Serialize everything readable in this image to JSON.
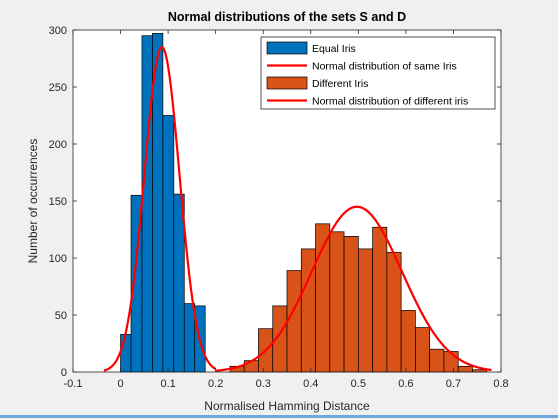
{
  "chart_data": {
    "type": "histogram",
    "title": "Normal distributions of the sets S and D",
    "xlabel": "Normalised Hamming Distance",
    "ylabel": "Number of occurrences",
    "xlim": [
      -0.1,
      0.8
    ],
    "ylim": [
      0,
      300
    ],
    "xticks": [
      -0.1,
      0,
      0.1,
      0.2,
      0.3,
      0.4,
      0.5,
      0.6,
      0.7,
      0.8
    ],
    "xtick_labels": [
      "-0.1",
      "0",
      "0.1",
      "0.2",
      "0.3",
      "0.4",
      "0.5",
      "0.6",
      "0.7",
      "0.8"
    ],
    "yticks": [
      0,
      50,
      100,
      150,
      200,
      250,
      300
    ],
    "ytick_labels": [
      "0",
      "50",
      "100",
      "150",
      "200",
      "250",
      "300"
    ],
    "grid": false,
    "legend_position": "top-right",
    "series": [
      {
        "name": "Equal Iris",
        "kind": "bars",
        "color": "#0072bd",
        "bins": [
          {
            "x0": 0.0,
            "x1": 0.022,
            "count": 33
          },
          {
            "x0": 0.022,
            "x1": 0.045,
            "count": 155
          },
          {
            "x0": 0.045,
            "x1": 0.067,
            "count": 295
          },
          {
            "x0": 0.067,
            "x1": 0.089,
            "count": 297
          },
          {
            "x0": 0.089,
            "x1": 0.112,
            "count": 225
          },
          {
            "x0": 0.112,
            "x1": 0.134,
            "count": 156
          },
          {
            "x0": 0.134,
            "x1": 0.156,
            "count": 60
          },
          {
            "x0": 0.156,
            "x1": 0.178,
            "count": 58
          }
        ]
      },
      {
        "name": "Normal distribution of same Iris",
        "kind": "curve",
        "color": "#ff0000",
        "mean": 0.087,
        "peak": 285,
        "sigma": 0.037,
        "x_range": [
          -0.035,
          0.2
        ]
      },
      {
        "name": "Different Iris",
        "kind": "bars",
        "color": "#d95319",
        "bins": [
          {
            "x0": 0.23,
            "x1": 0.26,
            "count": 5
          },
          {
            "x0": 0.26,
            "x1": 0.29,
            "count": 10
          },
          {
            "x0": 0.29,
            "x1": 0.32,
            "count": 38
          },
          {
            "x0": 0.32,
            "x1": 0.35,
            "count": 58
          },
          {
            "x0": 0.35,
            "x1": 0.38,
            "count": 89
          },
          {
            "x0": 0.38,
            "x1": 0.41,
            "count": 108
          },
          {
            "x0": 0.41,
            "x1": 0.44,
            "count": 130
          },
          {
            "x0": 0.44,
            "x1": 0.47,
            "count": 123
          },
          {
            "x0": 0.47,
            "x1": 0.5,
            "count": 119
          },
          {
            "x0": 0.5,
            "x1": 0.53,
            "count": 108
          },
          {
            "x0": 0.53,
            "x1": 0.56,
            "count": 127
          },
          {
            "x0": 0.56,
            "x1": 0.59,
            "count": 105
          },
          {
            "x0": 0.59,
            "x1": 0.62,
            "count": 54
          },
          {
            "x0": 0.62,
            "x1": 0.65,
            "count": 39
          },
          {
            "x0": 0.65,
            "x1": 0.68,
            "count": 20
          },
          {
            "x0": 0.68,
            "x1": 0.71,
            "count": 18
          },
          {
            "x0": 0.71,
            "x1": 0.74,
            "count": 5
          },
          {
            "x0": 0.74,
            "x1": 0.77,
            "count": 2
          }
        ]
      },
      {
        "name": "Normal distribution of different iris",
        "kind": "curve",
        "color": "#ff0000",
        "mean": 0.497,
        "peak": 145,
        "sigma": 0.095,
        "x_range": [
          0.2,
          0.78
        ]
      }
    ]
  }
}
